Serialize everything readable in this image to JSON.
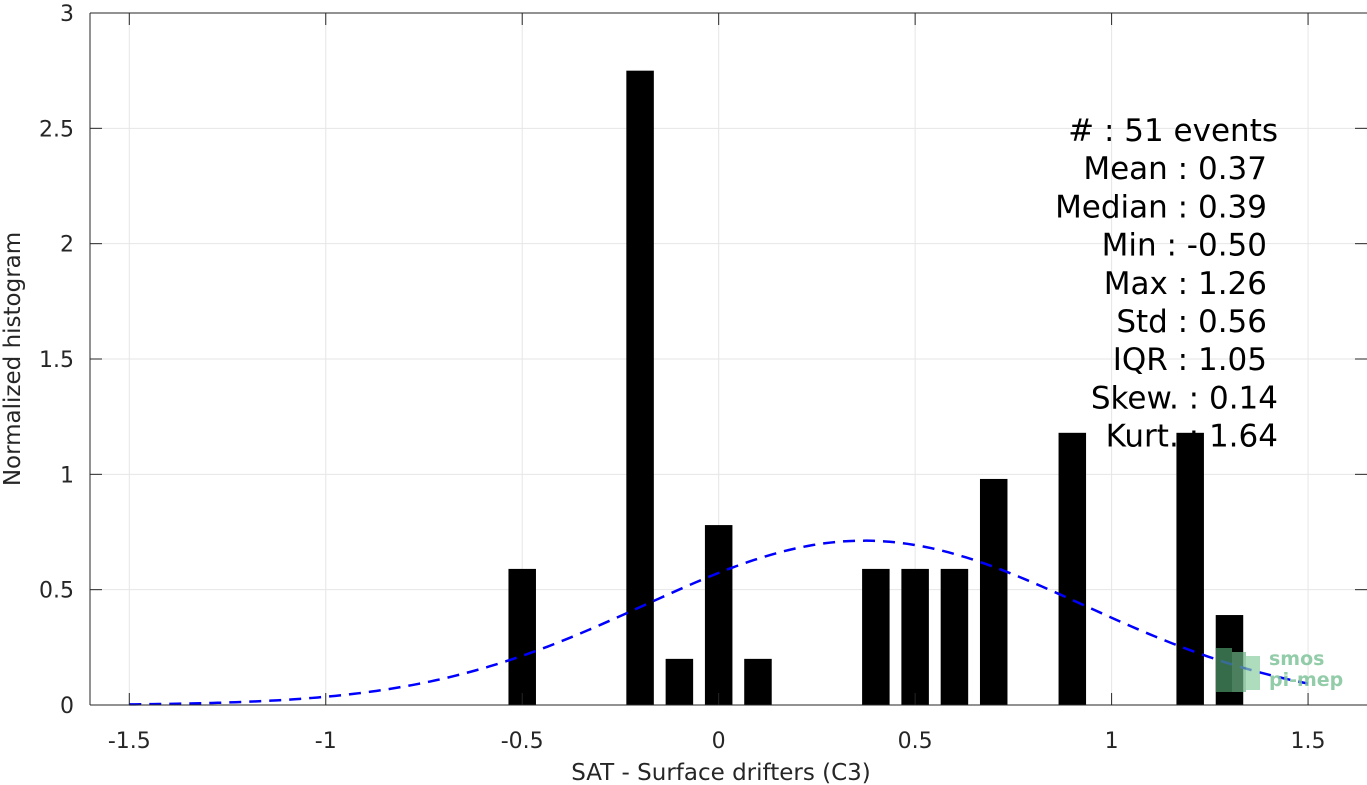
{
  "chart_data": {
    "type": "bar",
    "xlabel": "SAT - Surface drifters (C3)",
    "ylabel": "Normalized histogram",
    "xlim": [
      -1.6,
      1.65
    ],
    "ylim": [
      0,
      3
    ],
    "xticks": [
      -1.5,
      -1,
      -0.5,
      0,
      0.5,
      1,
      1.5
    ],
    "xtick_labels": [
      "-1.5",
      "-1",
      "-0.5",
      "0",
      "0.5",
      "1",
      "1.5"
    ],
    "yticks": [
      0,
      0.5,
      1,
      1.5,
      2,
      2.5,
      3
    ],
    "ytick_labels": [
      "0",
      "0.5",
      "1",
      "1.5",
      "2",
      "2.5",
      "3"
    ],
    "grid": true,
    "bar_width": 0.07,
    "bars": [
      {
        "x": -0.5,
        "value": 0.59
      },
      {
        "x": -0.2,
        "value": 2.75
      },
      {
        "x": -0.1,
        "value": 0.2
      },
      {
        "x": 0.0,
        "value": 0.78
      },
      {
        "x": 0.1,
        "value": 0.2
      },
      {
        "x": 0.4,
        "value": 0.59
      },
      {
        "x": 0.5,
        "value": 0.59
      },
      {
        "x": 0.6,
        "value": 0.59
      },
      {
        "x": 0.7,
        "value": 0.98
      },
      {
        "x": 0.9,
        "value": 1.18
      },
      {
        "x": 1.2,
        "value": 1.18
      },
      {
        "x": 1.3,
        "value": 0.39
      }
    ],
    "fit_curve": {
      "type": "gaussian",
      "style": "dashed",
      "color": "#0000ff",
      "mean": 0.37,
      "std": 0.56,
      "x_range": [
        -1.5,
        1.5
      ]
    },
    "bar_color": "#000000"
  },
  "stats": [
    {
      "label": "#  ",
      "value": ": 51 events"
    },
    {
      "label": "Mean",
      "value": ": 0.37"
    },
    {
      "label": "Median",
      "value": ": 0.39"
    },
    {
      "label": "Min",
      "value": ": -0.50"
    },
    {
      "label": "Max",
      "value": ": 1.26"
    },
    {
      "label": "Std",
      "value": ": 0.56"
    },
    {
      "label": "IQR",
      "value": ": 1.05"
    },
    {
      "label": "Skew.",
      "value": ": 0.14"
    },
    {
      "label": "Kurt.",
      "value": ": 1.64"
    }
  ],
  "stats_lines": [
    "#  : 51 events",
    "Mean : 0.37",
    "Median : 0.39",
    "Min : -0.50",
    "Max : 1.26",
    "Std : 0.56",
    "IQR : 1.05",
    "Skew. : 0.14",
    "Kurt. : 1.64"
  ],
  "logo": {
    "line1": "smos",
    "line2": "pi-mep",
    "color": "#7fc49a"
  }
}
